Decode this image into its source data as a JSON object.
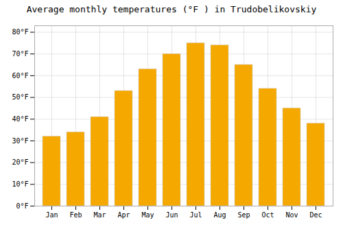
{
  "chart_data": {
    "type": "bar",
    "title": "Average monthly temperatures (°F ) in Trudobelikovskiy",
    "categories": [
      "Jan",
      "Feb",
      "Mar",
      "Apr",
      "May",
      "Jun",
      "Jul",
      "Aug",
      "Sep",
      "Oct",
      "Nov",
      "Dec"
    ],
    "values": [
      32,
      34,
      41,
      53,
      63,
      70,
      75,
      74,
      65,
      54,
      45,
      38
    ],
    "color": "#F5A800",
    "ylim": [
      0,
      83
    ],
    "yticks": [
      {
        "value": 0,
        "label": "0°F"
      },
      {
        "value": 10,
        "label": "10°F"
      },
      {
        "value": 20,
        "label": "20°F"
      },
      {
        "value": 30,
        "label": "30°F"
      },
      {
        "value": 40,
        "label": "40°F"
      },
      {
        "value": 50,
        "label": "50°F"
      },
      {
        "value": 60,
        "label": "60°F"
      },
      {
        "value": 70,
        "label": "70°F"
      },
      {
        "value": 80,
        "label": "80°F"
      }
    ],
    "grid": true
  }
}
